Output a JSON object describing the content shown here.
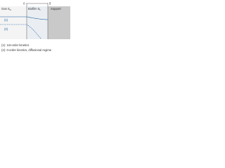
{
  "axis": {
    "start": "0",
    "end": "δ"
  },
  "regions": [
    {
      "label": "Gas",
      "symbol": "S",
      "subscript": "G"
    },
    {
      "label": "Biofilm",
      "symbol": "S",
      "subscript": "L"
    },
    {
      "label": "Support"
    }
  ],
  "curves": [
    {
      "label": "(1)"
    },
    {
      "label": "(2)"
    }
  ],
  "legend": [
    "(1): 1st-order kinetics",
    "(2): 0-order kinetics, diffusional regime"
  ]
}
